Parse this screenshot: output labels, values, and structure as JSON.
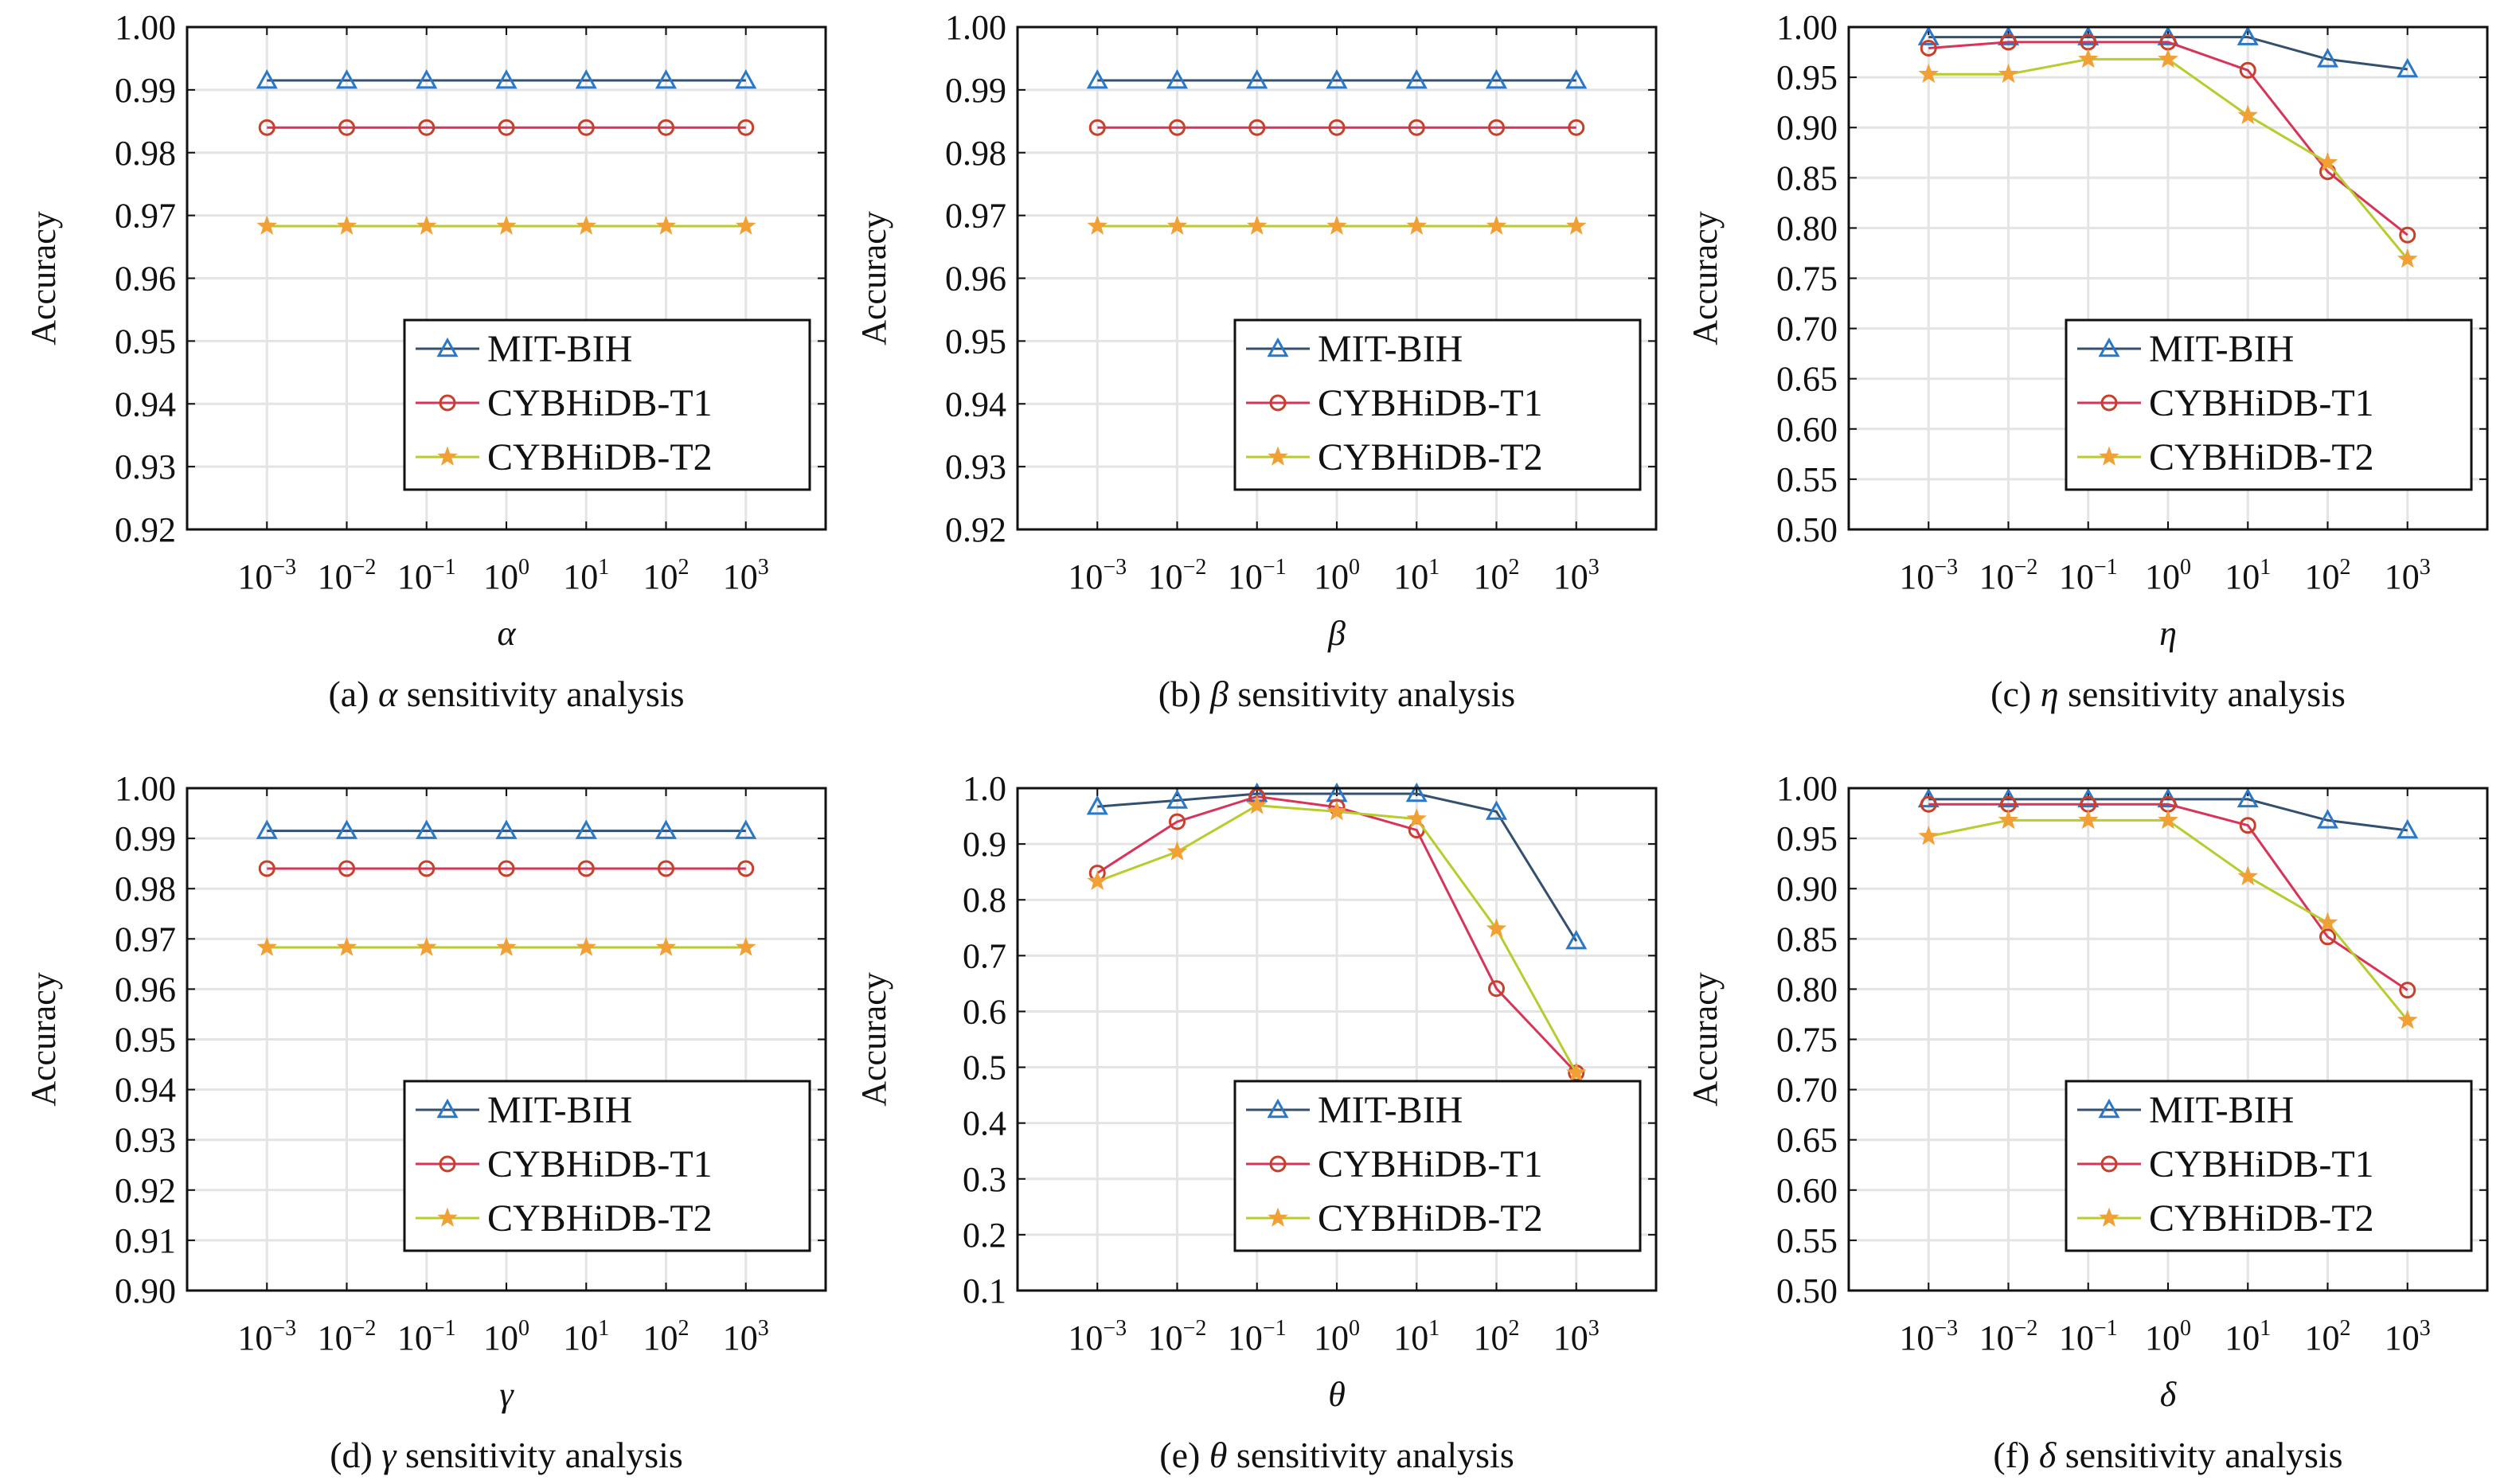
{
  "colors": {
    "MIT-BIH": {
      "line": "#34506f",
      "marker": "#2a78c8"
    },
    "CYBHiDB-T1": {
      "line": "#d8345a",
      "marker": "#c8402a"
    },
    "CYBHiDB-T2": {
      "line": "#b9cc2e",
      "marker": "#f0a035"
    },
    "grid": "#e4e4e4",
    "axis": "#111111"
  },
  "chart_data": [
    {
      "type": "line",
      "panel": "(a)",
      "param": "α",
      "caption_suffix": "sensitivity analysis",
      "xlabel": "α",
      "ylabel": "Accuracy",
      "x_scale": "log",
      "x_ticks": [
        {
          "base": "10",
          "exp": "−3"
        },
        {
          "base": "10",
          "exp": "−2"
        },
        {
          "base": "10",
          "exp": "−1"
        },
        {
          "base": "10",
          "exp": "0"
        },
        {
          "base": "10",
          "exp": "1"
        },
        {
          "base": "10",
          "exp": "2"
        },
        {
          "base": "10",
          "exp": "3"
        }
      ],
      "x": [
        0.001,
        0.01,
        0.1,
        1,
        10,
        100,
        1000
      ],
      "ylim": [
        0.92,
        1.0
      ],
      "yticks": [
        "0.92",
        "0.93",
        "0.94",
        "0.95",
        "0.96",
        "0.97",
        "0.98",
        "0.99",
        "1.00"
      ],
      "grid": true,
      "legend": "bottom-right",
      "series": [
        {
          "name": "MIT-BIH",
          "marker": "triangle",
          "values": [
            0.9915,
            0.9915,
            0.9915,
            0.9915,
            0.9915,
            0.9915,
            0.9915
          ]
        },
        {
          "name": "CYBHiDB-T1",
          "marker": "circle",
          "values": [
            0.984,
            0.984,
            0.984,
            0.984,
            0.984,
            0.984,
            0.984
          ]
        },
        {
          "name": "CYBHiDB-T2",
          "marker": "star",
          "values": [
            0.9683,
            0.9683,
            0.9683,
            0.9683,
            0.9683,
            0.9683,
            0.9683
          ]
        }
      ]
    },
    {
      "type": "line",
      "panel": "(b)",
      "param": "β",
      "caption_suffix": "sensitivity analysis",
      "xlabel": "β",
      "ylabel": "Accuracy",
      "x_scale": "log",
      "x_ticks": [
        {
          "base": "10",
          "exp": "−3"
        },
        {
          "base": "10",
          "exp": "−2"
        },
        {
          "base": "10",
          "exp": "−1"
        },
        {
          "base": "10",
          "exp": "0"
        },
        {
          "base": "10",
          "exp": "1"
        },
        {
          "base": "10",
          "exp": "2"
        },
        {
          "base": "10",
          "exp": "3"
        }
      ],
      "x": [
        0.001,
        0.01,
        0.1,
        1,
        10,
        100,
        1000
      ],
      "ylim": [
        0.92,
        1.0
      ],
      "yticks": [
        "0.92",
        "0.93",
        "0.94",
        "0.95",
        "0.96",
        "0.97",
        "0.98",
        "0.99",
        "1.00"
      ],
      "grid": true,
      "legend": "bottom-right",
      "series": [
        {
          "name": "MIT-BIH",
          "marker": "triangle",
          "values": [
            0.9915,
            0.9915,
            0.9915,
            0.9915,
            0.9915,
            0.9915,
            0.9915
          ]
        },
        {
          "name": "CYBHiDB-T1",
          "marker": "circle",
          "values": [
            0.984,
            0.984,
            0.984,
            0.984,
            0.984,
            0.984,
            0.984
          ]
        },
        {
          "name": "CYBHiDB-T2",
          "marker": "star",
          "values": [
            0.9683,
            0.9683,
            0.9683,
            0.9683,
            0.9683,
            0.9683,
            0.9683
          ]
        }
      ]
    },
    {
      "type": "line",
      "panel": "(c)",
      "param": "η",
      "caption_suffix": "sensitivity analysis",
      "xlabel": "η",
      "ylabel": "Accuracy",
      "x_scale": "log",
      "x_ticks": [
        {
          "base": "10",
          "exp": "−3"
        },
        {
          "base": "10",
          "exp": "−2"
        },
        {
          "base": "10",
          "exp": "−1"
        },
        {
          "base": "10",
          "exp": "0"
        },
        {
          "base": "10",
          "exp": "1"
        },
        {
          "base": "10",
          "exp": "2"
        },
        {
          "base": "10",
          "exp": "3"
        }
      ],
      "x": [
        0.001,
        0.01,
        0.1,
        1,
        10,
        100,
        1000
      ],
      "ylim": [
        0.5,
        1.0
      ],
      "yticks": [
        "0.50",
        "0.55",
        "0.60",
        "0.65",
        "0.70",
        "0.75",
        "0.80",
        "0.85",
        "0.90",
        "0.95",
        "1.00"
      ],
      "grid": true,
      "legend": "bottom-right",
      "series": [
        {
          "name": "MIT-BIH",
          "marker": "triangle",
          "values": [
            0.99,
            0.99,
            0.99,
            0.99,
            0.99,
            0.968,
            0.958
          ]
        },
        {
          "name": "CYBHiDB-T1",
          "marker": "circle",
          "values": [
            0.979,
            0.985,
            0.985,
            0.985,
            0.957,
            0.856,
            0.793
          ]
        },
        {
          "name": "CYBHiDB-T2",
          "marker": "star",
          "values": [
            0.953,
            0.953,
            0.968,
            0.968,
            0.912,
            0.865,
            0.769
          ]
        }
      ]
    },
    {
      "type": "line",
      "panel": "(d)",
      "param": "γ",
      "caption_suffix": "sensitivity analysis",
      "xlabel": "γ",
      "ylabel": "Accuracy",
      "x_scale": "log",
      "x_ticks": [
        {
          "base": "10",
          "exp": "−3"
        },
        {
          "base": "10",
          "exp": "−2"
        },
        {
          "base": "10",
          "exp": "−1"
        },
        {
          "base": "10",
          "exp": "0"
        },
        {
          "base": "10",
          "exp": "1"
        },
        {
          "base": "10",
          "exp": "2"
        },
        {
          "base": "10",
          "exp": "3"
        }
      ],
      "x": [
        0.001,
        0.01,
        0.1,
        1,
        10,
        100,
        1000
      ],
      "ylim": [
        0.9,
        1.0
      ],
      "yticks": [
        "0.90",
        "0.91",
        "0.92",
        "0.93",
        "0.94",
        "0.95",
        "0.96",
        "0.97",
        "0.98",
        "0.99",
        "1.00"
      ],
      "grid": true,
      "legend": "bottom-right",
      "series": [
        {
          "name": "MIT-BIH",
          "marker": "triangle",
          "values": [
            0.9915,
            0.9915,
            0.9915,
            0.9915,
            0.9915,
            0.9915,
            0.9915
          ]
        },
        {
          "name": "CYBHiDB-T1",
          "marker": "circle",
          "values": [
            0.984,
            0.984,
            0.984,
            0.984,
            0.984,
            0.984,
            0.984
          ]
        },
        {
          "name": "CYBHiDB-T2",
          "marker": "star",
          "values": [
            0.9683,
            0.9683,
            0.9683,
            0.9683,
            0.9683,
            0.9683,
            0.9683
          ]
        }
      ]
    },
    {
      "type": "line",
      "panel": "(e)",
      "param": "θ",
      "caption_suffix": "sensitivity analysis",
      "xlabel": "θ",
      "ylabel": "Accuracy",
      "x_scale": "log",
      "x_ticks": [
        {
          "base": "10",
          "exp": "−3"
        },
        {
          "base": "10",
          "exp": "−2"
        },
        {
          "base": "10",
          "exp": "−1"
        },
        {
          "base": "10",
          "exp": "0"
        },
        {
          "base": "10",
          "exp": "1"
        },
        {
          "base": "10",
          "exp": "2"
        },
        {
          "base": "10",
          "exp": "3"
        }
      ],
      "x": [
        0.001,
        0.01,
        0.1,
        1,
        10,
        100,
        1000
      ],
      "ylim": [
        0.1,
        1.0
      ],
      "yticks": [
        "0.1",
        "0.2",
        "0.3",
        "0.4",
        "0.5",
        "0.6",
        "0.7",
        "0.8",
        "0.9",
        "1.0"
      ],
      "grid": true,
      "legend": "bottom-right",
      "series": [
        {
          "name": "MIT-BIH",
          "marker": "triangle",
          "values": [
            0.967,
            0.978,
            0.99,
            0.99,
            0.99,
            0.958,
            0.726
          ]
        },
        {
          "name": "CYBHiDB-T1",
          "marker": "circle",
          "values": [
            0.848,
            0.94,
            0.985,
            0.966,
            0.925,
            0.641,
            0.49
          ]
        },
        {
          "name": "CYBHiDB-T2",
          "marker": "star",
          "values": [
            0.833,
            0.886,
            0.969,
            0.958,
            0.945,
            0.748,
            0.49
          ]
        }
      ]
    },
    {
      "type": "line",
      "panel": "(f)",
      "param": "δ",
      "caption_suffix": "sensitivity analysis",
      "xlabel": "δ",
      "ylabel": "Accuracy",
      "x_scale": "log",
      "x_ticks": [
        {
          "base": "10",
          "exp": "−3"
        },
        {
          "base": "10",
          "exp": "−2"
        },
        {
          "base": "10",
          "exp": "−1"
        },
        {
          "base": "10",
          "exp": "0"
        },
        {
          "base": "10",
          "exp": "1"
        },
        {
          "base": "10",
          "exp": "2"
        },
        {
          "base": "10",
          "exp": "3"
        }
      ],
      "x": [
        0.001,
        0.01,
        0.1,
        1,
        10,
        100,
        1000
      ],
      "ylim": [
        0.5,
        1.0
      ],
      "yticks": [
        "0.50",
        "0.55",
        "0.60",
        "0.65",
        "0.70",
        "0.75",
        "0.80",
        "0.85",
        "0.90",
        "0.95",
        "1.00"
      ],
      "grid": true,
      "legend": "bottom-right",
      "series": [
        {
          "name": "MIT-BIH",
          "marker": "triangle",
          "values": [
            0.989,
            0.989,
            0.989,
            0.989,
            0.989,
            0.968,
            0.958
          ]
        },
        {
          "name": "CYBHiDB-T1",
          "marker": "circle",
          "values": [
            0.984,
            0.984,
            0.984,
            0.984,
            0.963,
            0.852,
            0.799
          ]
        },
        {
          "name": "CYBHiDB-T2",
          "marker": "star",
          "values": [
            0.952,
            0.968,
            0.968,
            0.968,
            0.912,
            0.866,
            0.769
          ]
        }
      ]
    }
  ]
}
